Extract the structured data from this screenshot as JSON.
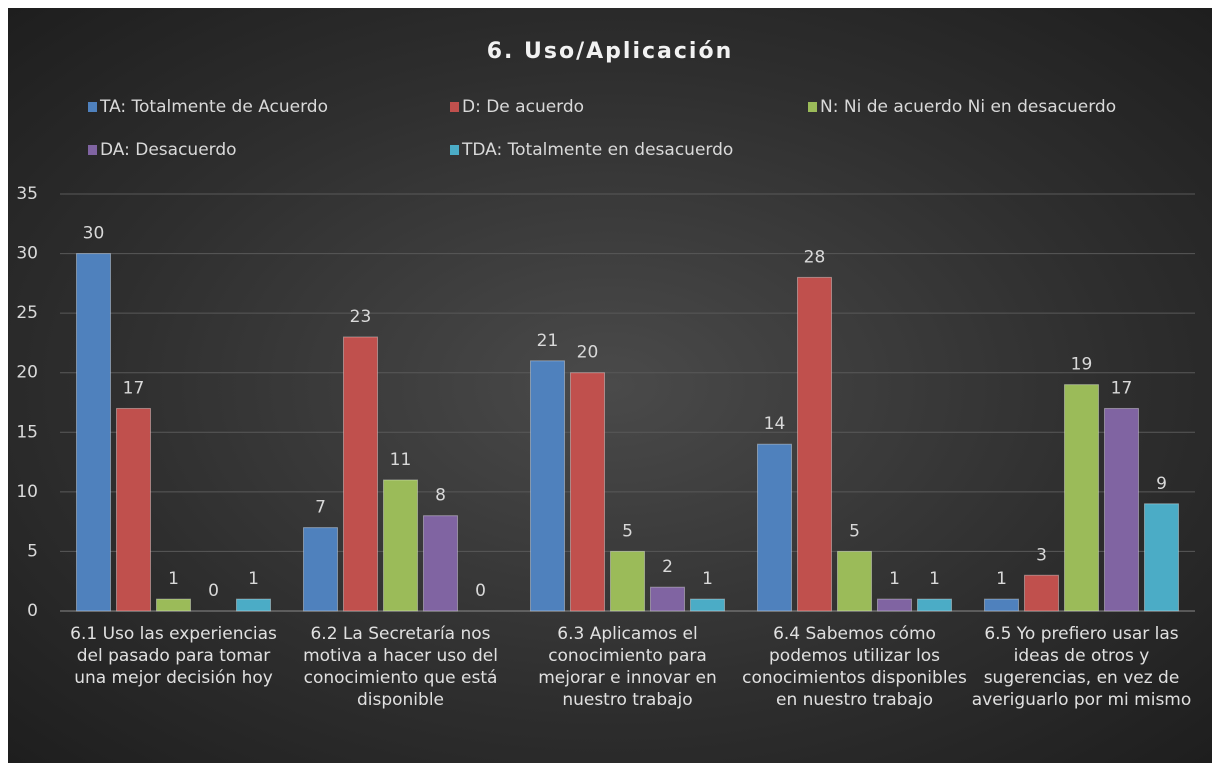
{
  "chart_data": {
    "type": "bar",
    "title": "6. Uso/Aplicación",
    "categories": [
      "6.1 Uso las experiencias del pasado para tomar una mejor decisión hoy",
      "6.2 La Secretaría nos motiva a hacer uso del conocimiento que está disponible",
      "6.3 Aplicamos el conocimiento para mejorar e innovar en nuestro trabajo",
      "6.4 Sabemos cómo podemos utilizar los conocimientos disponibles en nuestro trabajo",
      "6.5 Yo prefiero usar las ideas de otros y sugerencias, en vez de averiguarlo por mi mismo"
    ],
    "series": [
      {
        "name": "TA: Totalmente de Acuerdo",
        "color": "#4f81bd",
        "values": [
          30,
          7,
          21,
          14,
          1
        ]
      },
      {
        "name": "D: De acuerdo",
        "color": "#c0504d",
        "values": [
          17,
          23,
          20,
          28,
          3
        ]
      },
      {
        "name": "N: Ni de acuerdo Ni en desacuerdo",
        "color": "#9bbb59",
        "values": [
          1,
          11,
          5,
          5,
          19
        ]
      },
      {
        "name": "DA: Desacuerdo",
        "color": "#8064a2",
        "values": [
          0,
          8,
          2,
          1,
          17
        ]
      },
      {
        "name": "TDA: Totalmente en desacuerdo",
        "color": "#4bacc6",
        "values": [
          1,
          0,
          1,
          1,
          9
        ]
      }
    ],
    "ylim": [
      0,
      35
    ],
    "yticks": [
      0,
      5,
      10,
      15,
      20,
      25,
      30,
      35
    ],
    "grid": true,
    "legend": "top"
  }
}
